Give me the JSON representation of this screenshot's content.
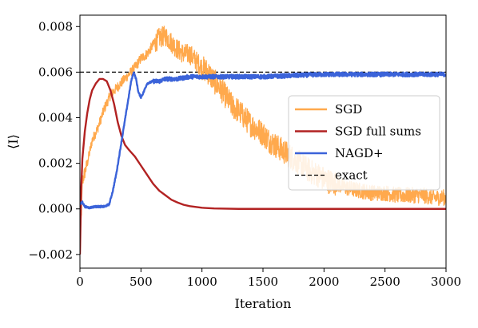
{
  "chart_data": {
    "type": "line",
    "title": "",
    "xlabel": "Iteration",
    "ylabel": "⟨I⟩",
    "xlim": [
      0,
      3000
    ],
    "ylim": [
      -0.0026,
      0.0085
    ],
    "grid": false,
    "legend_position": "right",
    "x_ticks": [
      0,
      500,
      1000,
      1500,
      2000,
      2500,
      3000
    ],
    "x_tick_labels": [
      "0",
      "500",
      "1000",
      "1500",
      "2000",
      "2500",
      "3000"
    ],
    "y_ticks": [
      -0.002,
      0.0,
      0.002,
      0.004,
      0.006,
      0.008
    ],
    "y_tick_labels": [
      "−0.002",
      "0.000",
      "0.002",
      "0.004",
      "0.006",
      "0.008"
    ],
    "series": [
      {
        "name": "SGD",
        "color": "#ffa94d",
        "style": "noisy",
        "points": [
          [
            0,
            -0.002
          ],
          [
            20,
            0.0012
          ],
          [
            60,
            0.002
          ],
          [
            100,
            0.003
          ],
          [
            150,
            0.0036
          ],
          [
            200,
            0.0044
          ],
          [
            250,
            0.005
          ],
          [
            300,
            0.0053
          ],
          [
            350,
            0.0056
          ],
          [
            400,
            0.0059
          ],
          [
            450,
            0.0062
          ],
          [
            500,
            0.0066
          ],
          [
            550,
            0.0068
          ],
          [
            600,
            0.0072
          ],
          [
            650,
            0.0075
          ],
          [
            700,
            0.0076
          ],
          [
            750,
            0.0073
          ],
          [
            800,
            0.007
          ],
          [
            850,
            0.0068
          ],
          [
            900,
            0.0068
          ],
          [
            950,
            0.0065
          ],
          [
            1000,
            0.0062
          ],
          [
            1050,
            0.006
          ],
          [
            1100,
            0.0056
          ],
          [
            1150,
            0.0053
          ],
          [
            1200,
            0.0049
          ],
          [
            1250,
            0.0045
          ],
          [
            1300,
            0.0043
          ],
          [
            1350,
            0.004
          ],
          [
            1400,
            0.0037
          ],
          [
            1450,
            0.0035
          ],
          [
            1500,
            0.0033
          ],
          [
            1550,
            0.003
          ],
          [
            1600,
            0.0028
          ],
          [
            1650,
            0.0026
          ],
          [
            1700,
            0.0024
          ],
          [
            1750,
            0.0022
          ],
          [
            1800,
            0.002
          ],
          [
            1850,
            0.0018
          ],
          [
            1900,
            0.0016
          ],
          [
            1950,
            0.0015
          ],
          [
            2000,
            0.0013
          ],
          [
            2100,
            0.0011
          ],
          [
            2200,
            0.0009
          ],
          [
            2300,
            0.0008
          ],
          [
            2400,
            0.0007
          ],
          [
            2500,
            0.0007
          ],
          [
            2600,
            0.0006
          ],
          [
            2700,
            0.0006
          ],
          [
            2800,
            0.0006
          ],
          [
            2900,
            0.0005
          ],
          [
            3000,
            0.0005
          ]
        ]
      },
      {
        "name": "SGD full sums",
        "color": "#b22222",
        "style": "smooth",
        "points": [
          [
            0,
            -0.002
          ],
          [
            10,
            0.0008
          ],
          [
            20,
            0.0022
          ],
          [
            40,
            0.0034
          ],
          [
            60,
            0.0042
          ],
          [
            80,
            0.0048
          ],
          [
            100,
            0.0052
          ],
          [
            130,
            0.0055
          ],
          [
            160,
            0.0057
          ],
          [
            190,
            0.0057
          ],
          [
            220,
            0.0056
          ],
          [
            250,
            0.0052
          ],
          [
            280,
            0.0046
          ],
          [
            310,
            0.0038
          ],
          [
            340,
            0.0032
          ],
          [
            370,
            0.0028
          ],
          [
            400,
            0.0026
          ],
          [
            450,
            0.0023
          ],
          [
            500,
            0.0019
          ],
          [
            550,
            0.0015
          ],
          [
            600,
            0.0011
          ],
          [
            650,
            0.0008
          ],
          [
            700,
            0.0006
          ],
          [
            750,
            0.0004
          ],
          [
            800,
            0.00028
          ],
          [
            850,
            0.00018
          ],
          [
            900,
            0.00012
          ],
          [
            1000,
            5e-05
          ],
          [
            1100,
            2e-05
          ],
          [
            1300,
            0.0
          ],
          [
            1500,
            0.0
          ],
          [
            2000,
            0.0
          ],
          [
            2500,
            0.0
          ],
          [
            3000,
            0.0
          ]
        ]
      },
      {
        "name": "NAGD+",
        "color": "#3b63d9",
        "style": "lightnoise",
        "points": [
          [
            0,
            0.0002
          ],
          [
            20,
            0.0003
          ],
          [
            40,
            0.0001
          ],
          [
            80,
            5e-05
          ],
          [
            120,
            0.0001
          ],
          [
            160,
            0.0001
          ],
          [
            200,
            0.0001
          ],
          [
            240,
            0.0002
          ],
          [
            270,
            0.0008
          ],
          [
            300,
            0.0016
          ],
          [
            330,
            0.0026
          ],
          [
            360,
            0.0036
          ],
          [
            390,
            0.0046
          ],
          [
            420,
            0.0056
          ],
          [
            440,
            0.006
          ],
          [
            460,
            0.0057
          ],
          [
            480,
            0.0051
          ],
          [
            500,
            0.0049
          ],
          [
            520,
            0.0051
          ],
          [
            550,
            0.0055
          ],
          [
            600,
            0.0056
          ],
          [
            650,
            0.0056
          ],
          [
            700,
            0.0057
          ],
          [
            800,
            0.0057
          ],
          [
            900,
            0.0058
          ],
          [
            1000,
            0.0058
          ],
          [
            1200,
            0.0058
          ],
          [
            1500,
            0.0058
          ],
          [
            2000,
            0.0059
          ],
          [
            2500,
            0.0059
          ],
          [
            3000,
            0.0059
          ]
        ]
      }
    ],
    "reference_line": {
      "name": "exact",
      "value": 0.006,
      "color": "#000000",
      "dash": "dashed"
    },
    "legend": [
      {
        "label": "SGD",
        "color": "#ffa94d",
        "dash": "solid"
      },
      {
        "label": "SGD full sums",
        "color": "#b22222",
        "dash": "solid"
      },
      {
        "label": "NAGD+",
        "color": "#3b63d9",
        "dash": "solid"
      },
      {
        "label": "exact",
        "color": "#000000",
        "dash": "dashed"
      }
    ]
  }
}
